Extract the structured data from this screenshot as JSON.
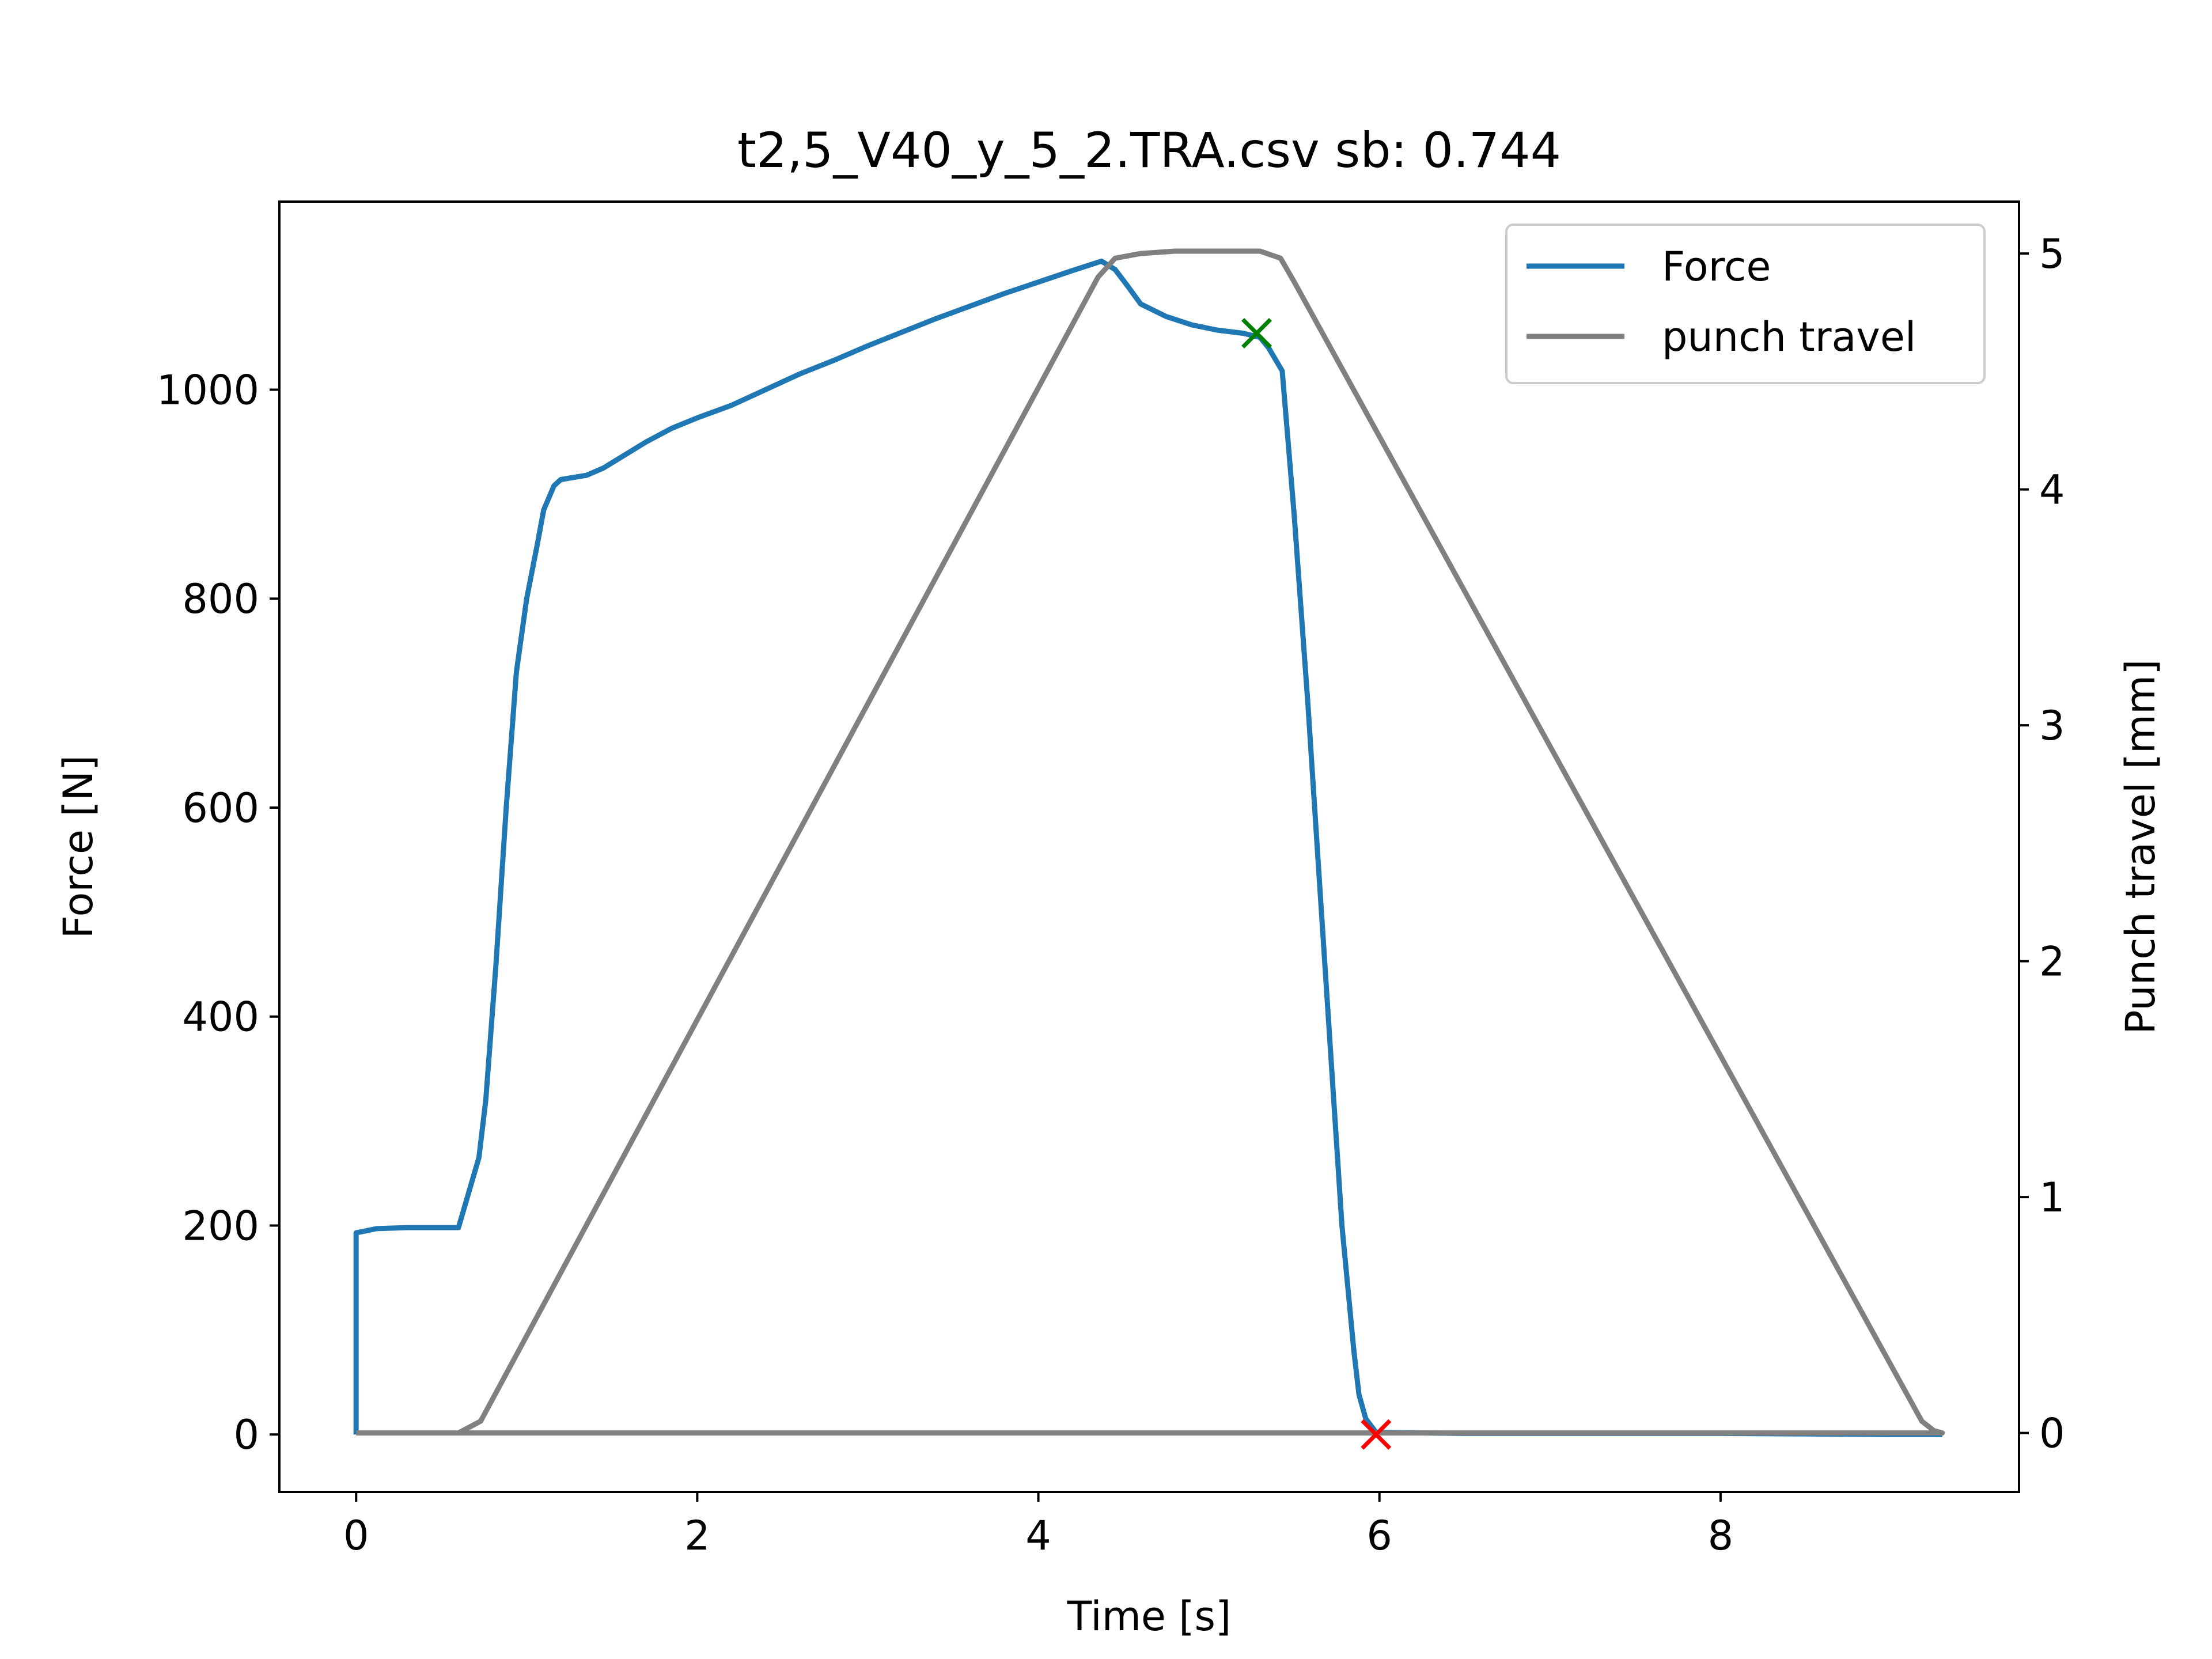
{
  "chart_data": {
    "type": "line",
    "title": "t2,5_V40_y_5_2.TRA.csv sb: 0.744",
    "xlabel": "Time [s]",
    "ylabel": "Force [N]",
    "y2label": "Punch travel [mm]",
    "xlim": [
      -0.45,
      9.75
    ],
    "ylim": [
      -55,
      1180
    ],
    "y2lim": [
      -0.25,
      5.22
    ],
    "xticks": [
      0,
      2,
      4,
      6,
      8
    ],
    "yticks": [
      0,
      200,
      400,
      600,
      800,
      1000
    ],
    "y2ticks": [
      0,
      1,
      2,
      3,
      4,
      5
    ],
    "grid": false,
    "legend_position": "top-right",
    "series": [
      {
        "name": "Force",
        "axis": "left",
        "color": "#1f77b4",
        "points": [
          [
            0.0,
            0
          ],
          [
            0.0,
            193
          ],
          [
            0.12,
            197
          ],
          [
            0.3,
            198
          ],
          [
            0.6,
            198
          ],
          [
            0.72,
            265
          ],
          [
            0.76,
            320
          ],
          [
            0.82,
            450
          ],
          [
            0.88,
            600
          ],
          [
            0.94,
            730
          ],
          [
            1.0,
            800
          ],
          [
            1.06,
            850
          ],
          [
            1.1,
            885
          ],
          [
            1.16,
            908
          ],
          [
            1.2,
            914
          ],
          [
            1.35,
            918
          ],
          [
            1.45,
            925
          ],
          [
            1.55,
            935
          ],
          [
            1.7,
            950
          ],
          [
            1.85,
            963
          ],
          [
            2.0,
            973
          ],
          [
            2.2,
            985
          ],
          [
            2.4,
            1000
          ],
          [
            2.6,
            1015
          ],
          [
            2.8,
            1028
          ],
          [
            3.0,
            1042
          ],
          [
            3.2,
            1055
          ],
          [
            3.4,
            1068
          ],
          [
            3.6,
            1080
          ],
          [
            3.8,
            1092
          ],
          [
            4.0,
            1103
          ],
          [
            4.2,
            1114
          ],
          [
            4.37,
            1123
          ],
          [
            4.45,
            1115
          ],
          [
            4.52,
            1100
          ],
          [
            4.6,
            1082
          ],
          [
            4.75,
            1070
          ],
          [
            4.9,
            1062
          ],
          [
            5.05,
            1057
          ],
          [
            5.2,
            1054
          ],
          [
            5.3,
            1050
          ],
          [
            5.35,
            1040
          ],
          [
            5.43,
            1018
          ],
          [
            5.5,
            880
          ],
          [
            5.58,
            700
          ],
          [
            5.66,
            500
          ],
          [
            5.72,
            350
          ],
          [
            5.78,
            200
          ],
          [
            5.85,
            80
          ],
          [
            5.88,
            38
          ],
          [
            5.92,
            15
          ],
          [
            5.98,
            2
          ],
          [
            6.5,
            1
          ],
          [
            8.0,
            1
          ],
          [
            9.0,
            0
          ],
          [
            9.3,
            0
          ]
        ]
      },
      {
        "name": "punch travel",
        "axis": "right",
        "color": "#808080",
        "points": [
          [
            0.0,
            0
          ],
          [
            0.6,
            0
          ],
          [
            0.73,
            0.05
          ],
          [
            4.35,
            4.9
          ],
          [
            4.45,
            4.98
          ],
          [
            4.6,
            5.0
          ],
          [
            4.8,
            5.01
          ],
          [
            5.0,
            5.01
          ],
          [
            5.3,
            5.01
          ],
          [
            5.42,
            4.98
          ],
          [
            5.5,
            4.88
          ],
          [
            9.18,
            0.05
          ],
          [
            9.25,
            0.01
          ],
          [
            9.3,
            0
          ],
          [
            8.0,
            0
          ],
          [
            6.0,
            0
          ],
          [
            4.0,
            0
          ],
          [
            2.0,
            0
          ],
          [
            0.0,
            0
          ]
        ]
      }
    ],
    "markers": [
      {
        "x": 5.28,
        "y": 1054,
        "axis": "left",
        "symbol": "x",
        "color": "#008000"
      },
      {
        "x": 5.98,
        "y": 0,
        "axis": "left",
        "symbol": "x",
        "color": "#ff0000"
      }
    ]
  }
}
